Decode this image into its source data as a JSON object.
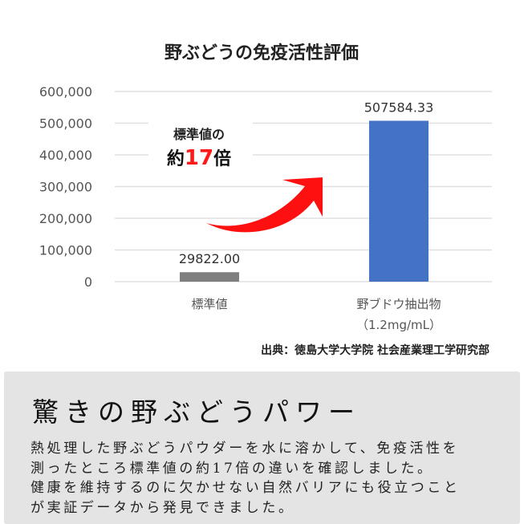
{
  "chart_data": {
    "type": "bar",
    "title": "野ぶどうの免疫活性評価",
    "categories": [
      "標準値",
      "野ブドウ抽出物"
    ],
    "category_sublabels": [
      "",
      "（1.2mg/mL）"
    ],
    "values": [
      29822.0,
      507584.33
    ],
    "data_labels": [
      "29822.00",
      "507584.33"
    ],
    "colors": [
      "#7f7f7f",
      "#4472c4"
    ],
    "ylim": [
      0,
      600000
    ],
    "yticks": [
      0,
      100000,
      200000,
      300000,
      400000,
      500000,
      600000
    ],
    "ytick_labels": [
      "0",
      "100,000",
      "200,000",
      "300,000",
      "400,000",
      "500,000",
      "600,000"
    ],
    "grid": true,
    "annotation": {
      "line1": "標準値の",
      "prefix": "約",
      "number": "17",
      "suffix": "倍",
      "number_color": "#ff1a1a",
      "arrow_color": "#ff1010"
    },
    "source": "出典：徳島大学大学院 社会産業理工学研究部"
  },
  "panel": {
    "title": "驚きの野ぶどうパワー",
    "lines": [
      "熱処理した野ぶどうパウダーを水に溶かして、免疫活性を",
      "測ったところ標準値の約17倍の違いを確認しました。",
      "健康を維持するのに欠かせない自然バリアにも役立つこと",
      "が実証データから発見できました。"
    ]
  }
}
